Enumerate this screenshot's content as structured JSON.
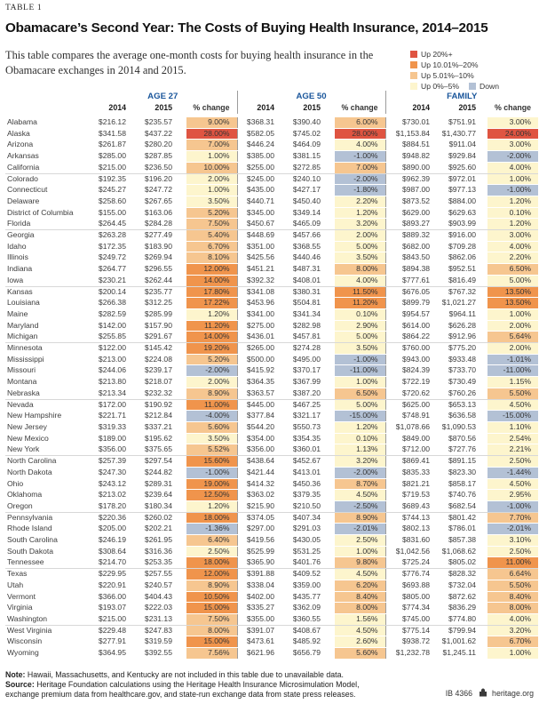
{
  "header": {
    "table_label": "TABLE 1",
    "title": "Obamacare’s Second Year: The Costs of Buying Health Insurance, 2014–2015",
    "intro": "This table compares the average one-month costs for buying health insurance in the Obamacare exchanges in 2014 and 2015.",
    "legend": {
      "items": [
        {
          "label": "Up 20%+",
          "tier": "up20"
        },
        {
          "label": "Up 10.01%–20%",
          "tier": "up10"
        },
        {
          "label": "Up 5.01%–10%",
          "tier": "up5"
        },
        {
          "label": "Up 0%–5%",
          "tier": "up0"
        },
        {
          "label": "Down",
          "tier": "down"
        }
      ]
    }
  },
  "palette": {
    "up20": "#df5441",
    "up10": "#f0944c",
    "up5": "#f6c690",
    "up0": "#fdf5cd",
    "down": "#b3c1d5",
    "group_header_text": "#1a569b"
  },
  "table": {
    "groups": [
      "AGE 27",
      "AGE 50",
      "FAMILY"
    ],
    "subheaders": [
      "2014",
      "2015",
      "% change"
    ],
    "rows": [
      [
        "Alabama",
        "$216.12",
        "$235.57",
        "9.00%",
        "$368.31",
        "$390.40",
        "6.00%",
        "$730.01",
        "$751.91",
        "3.00%"
      ],
      [
        "Alaska",
        "$341.58",
        "$437.22",
        "28.00%",
        "$582.05",
        "$745.02",
        "28.00%",
        "$1,153.84",
        "$1,430.77",
        "24.00%"
      ],
      [
        "Arizona",
        "$261.87",
        "$280.20",
        "7.00%",
        "$446.24",
        "$464.09",
        "4.00%",
        "$884.51",
        "$911.04",
        "3.00%"
      ],
      [
        "Arkansas",
        "$285.00",
        "$287.85",
        "1.00%",
        "$385.00",
        "$381.15",
        "-1.00%",
        "$948.82",
        "$929.84",
        "-2.00%"
      ],
      [
        "California",
        "$215.00",
        "$236.50",
        "10.00%",
        "$255.00",
        "$272.85",
        "7.00%",
        "$890.00",
        "$925.60",
        "4.00%"
      ],
      [
        "Colorado",
        "$192.35",
        "$196.20",
        "2.00%",
        "$245.00",
        "$240.10",
        "-2.00%",
        "$962.39",
        "$972.01",
        "1.00%"
      ],
      [
        "Connecticut",
        "$245.27",
        "$247.72",
        "1.00%",
        "$435.00",
        "$427.17",
        "-1.80%",
        "$987.00",
        "$977.13",
        "-1.00%"
      ],
      [
        "Delaware",
        "$258.60",
        "$267.65",
        "3.50%",
        "$440.71",
        "$450.40",
        "2.20%",
        "$873.52",
        "$884.00",
        "1.20%"
      ],
      [
        "District of Columbia",
        "$155.00",
        "$163.06",
        "5.20%",
        "$345.00",
        "$349.14",
        "1.20%",
        "$629.00",
        "$629.63",
        "0.10%"
      ],
      [
        "Florida",
        "$264.45",
        "$284.28",
        "7.50%",
        "$450.67",
        "$465.09",
        "3.20%",
        "$893.27",
        "$903.99",
        "1.20%"
      ],
      [
        "Georgia",
        "$263.28",
        "$277.49",
        "5.40%",
        "$448.69",
        "$457.66",
        "2.00%",
        "$889.32",
        "$916.00",
        "3.00%"
      ],
      [
        "Idaho",
        "$172.35",
        "$183.90",
        "6.70%",
        "$351.00",
        "$368.55",
        "5.00%",
        "$682.00",
        "$709.28",
        "4.00%"
      ],
      [
        "Illinois",
        "$249.72",
        "$269.94",
        "8.10%",
        "$425.56",
        "$440.46",
        "3.50%",
        "$843.50",
        "$862.06",
        "2.20%"
      ],
      [
        "Indiana",
        "$264.77",
        "$296.55",
        "12.00%",
        "$451.21",
        "$487.31",
        "8.00%",
        "$894.38",
        "$952.51",
        "6.50%"
      ],
      [
        "Iowa",
        "$230.21",
        "$262.44",
        "14.00%",
        "$392.32",
        "$408.01",
        "4.00%",
        "$777.61",
        "$816.49",
        "5.00%"
      ],
      [
        "Kansas",
        "$200.14",
        "$235.77",
        "17.80%",
        "$341.08",
        "$380.31",
        "11.50%",
        "$676.05",
        "$767.32",
        "13.50%"
      ],
      [
        "Louisiana",
        "$266.38",
        "$312.25",
        "17.22%",
        "$453.96",
        "$504.81",
        "11.20%",
        "$899.79",
        "$1,021.27",
        "13.50%"
      ],
      [
        "Maine",
        "$282.59",
        "$285.99",
        "1.20%",
        "$341.00",
        "$341.34",
        "0.10%",
        "$954.57",
        "$964.11",
        "1.00%"
      ],
      [
        "Maryland",
        "$142.00",
        "$157.90",
        "11.20%",
        "$275.00",
        "$282.98",
        "2.90%",
        "$614.00",
        "$626.28",
        "2.00%"
      ],
      [
        "Michigan",
        "$255.85",
        "$291.67",
        "14.00%",
        "$436.01",
        "$457.81",
        "5.00%",
        "$864.22",
        "$912.96",
        "5.64%"
      ],
      [
        "Minnesota",
        "$122.00",
        "$145.42",
        "19.20%",
        "$265.00",
        "$274.28",
        "3.50%",
        "$760.00",
        "$775.20",
        "2.00%"
      ],
      [
        "Mississippi",
        "$213.00",
        "$224.08",
        "5.20%",
        "$500.00",
        "$495.00",
        "-1.00%",
        "$943.00",
        "$933.48",
        "-1.01%"
      ],
      [
        "Missouri",
        "$244.06",
        "$239.17",
        "-2.00%",
        "$415.92",
        "$370.17",
        "-11.00%",
        "$824.39",
        "$733.70",
        "-11.00%"
      ],
      [
        "Montana",
        "$213.80",
        "$218.07",
        "2.00%",
        "$364.35",
        "$367.99",
        "1.00%",
        "$722.19",
        "$730.49",
        "1.15%"
      ],
      [
        "Nebraska",
        "$213.34",
        "$232.32",
        "8.90%",
        "$363.57",
        "$387.20",
        "6.50%",
        "$720.62",
        "$760.26",
        "5.50%"
      ],
      [
        "Nevada",
        "$172.00",
        "$190.92",
        "11.00%",
        "$445.00",
        "$467.25",
        "5.00%",
        "$625.00",
        "$653.13",
        "4.50%"
      ],
      [
        "New Hampshire",
        "$221.71",
        "$212.84",
        "-4.00%",
        "$377.84",
        "$321.17",
        "-15.00%",
        "$748.91",
        "$636.58",
        "-15.00%"
      ],
      [
        "New Jersey",
        "$319.33",
        "$337.21",
        "5.60%",
        "$544.20",
        "$550.73",
        "1.20%",
        "$1,078.66",
        "$1,090.53",
        "1.10%"
      ],
      [
        "New Mexico",
        "$189.00",
        "$195.62",
        "3.50%",
        "$354.00",
        "$354.35",
        "0.10%",
        "$849.00",
        "$870.56",
        "2.54%"
      ],
      [
        "New York",
        "$356.00",
        "$375.65",
        "5.52%",
        "$356.00",
        "$360.01",
        "1.13%",
        "$712.00",
        "$727.76",
        "2.21%"
      ],
      [
        "North Carolina",
        "$257.39",
        "$297.54",
        "15.60%",
        "$438.64",
        "$452.67",
        "3.20%",
        "$869.41",
        "$891.15",
        "2.50%"
      ],
      [
        "North Dakota",
        "$247.30",
        "$244.82",
        "-1.00%",
        "$421.44",
        "$413.01",
        "-2.00%",
        "$835.33",
        "$823.30",
        "-1.44%"
      ],
      [
        "Ohio",
        "$243.12",
        "$289.31",
        "19.00%",
        "$414.32",
        "$450.36",
        "8.70%",
        "$821.21",
        "$858.17",
        "4.50%"
      ],
      [
        "Oklahoma",
        "$213.02",
        "$239.64",
        "12.50%",
        "$363.02",
        "$379.35",
        "4.50%",
        "$719.53",
        "$740.76",
        "2.95%"
      ],
      [
        "Oregon",
        "$178.20",
        "$180.34",
        "1.20%",
        "$215.90",
        "$210.50",
        "-2.50%",
        "$689.43",
        "$682.54",
        "-1.00%"
      ],
      [
        "Pennsylvania",
        "$220.36",
        "$260.02",
        "18.00%",
        "$374.05",
        "$407.34",
        "8.90%",
        "$744.13",
        "$801.42",
        "7.70%"
      ],
      [
        "Rhode Island",
        "$205.00",
        "$202.21",
        "-1.36%",
        "$297.00",
        "$291.03",
        "-2.01%",
        "$802.13",
        "$786.01",
        "-2.01%"
      ],
      [
        "South Carolina",
        "$246.19",
        "$261.95",
        "6.40%",
        "$419.56",
        "$430.05",
        "2.50%",
        "$831.60",
        "$857.38",
        "3.10%"
      ],
      [
        "South Dakota",
        "$308.64",
        "$316.36",
        "2.50%",
        "$525.99",
        "$531.25",
        "1.00%",
        "$1,042.56",
        "$1,068.62",
        "2.50%"
      ],
      [
        "Tennessee",
        "$214.70",
        "$253.35",
        "18.00%",
        "$365.90",
        "$401.76",
        "9.80%",
        "$725.24",
        "$805.02",
        "11.00%"
      ],
      [
        "Texas",
        "$229.95",
        "$257.55",
        "12.00%",
        "$391.88",
        "$409.52",
        "4.50%",
        "$776.74",
        "$828.32",
        "6.64%"
      ],
      [
        "Utah",
        "$220.91",
        "$240.57",
        "8.90%",
        "$338.04",
        "$359.00",
        "6.20%",
        "$693.88",
        "$732.04",
        "5.50%"
      ],
      [
        "Vermont",
        "$366.00",
        "$404.43",
        "10.50%",
        "$402.00",
        "$435.77",
        "8.40%",
        "$805.00",
        "$872.62",
        "8.40%"
      ],
      [
        "Virginia",
        "$193.07",
        "$222.03",
        "15.00%",
        "$335.27",
        "$362.09",
        "8.00%",
        "$774.34",
        "$836.29",
        "8.00%"
      ],
      [
        "Washington",
        "$215.00",
        "$231.13",
        "7.50%",
        "$355.00",
        "$360.55",
        "1.56%",
        "$745.00",
        "$774.80",
        "4.00%"
      ],
      [
        "West Virginia",
        "$229.48",
        "$247.83",
        "8.00%",
        "$391.07",
        "$408.67",
        "4.50%",
        "$775.14",
        "$799.94",
        "3.20%"
      ],
      [
        "Wisconsin",
        "$277.91",
        "$319.59",
        "15.00%",
        "$473.61",
        "$485.92",
        "2.60%",
        "$938.72",
        "$1,001.62",
        "6.70%"
      ],
      [
        "Wyoming",
        "$364.95",
        "$392.55",
        "7.56%",
        "$621.96",
        "$656.79",
        "5.60%",
        "$1,232.78",
        "$1,245.11",
        "1.00%"
      ]
    ]
  },
  "footer": {
    "note_label": "Note:",
    "note": " Hawaii, Massachusetts, and Kentucky are not included in this table due to unavailable data.",
    "source_label": "Source:",
    "source_line1": " Heritage Foundation calculations using the Heritage Health Insurance Microsimulation Model,",
    "source_line2": "exchange premium data from healthcare.gov, and state-run exchange data from state press releases.",
    "report_id": "IB 4366",
    "site": "heritage.org"
  }
}
